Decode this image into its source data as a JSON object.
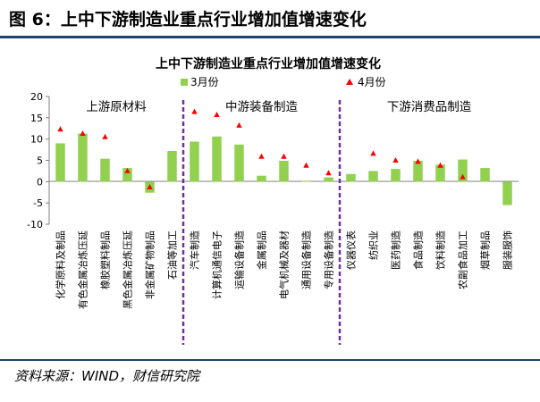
{
  "figure": {
    "title": "图 6：上中下游制造业重点行业增加值增速变化",
    "source": "资料来源：WIND，财信研究院"
  },
  "colors": {
    "bar": "#92d050",
    "marker": "#ff0000",
    "divider": "#7030a0",
    "header_rule": "#1f3f6e"
  },
  "chart_data": {
    "type": "bar",
    "title": "上中下游制造业重点行业增加值增速变化",
    "ylim": [
      -10,
      20
    ],
    "yticks": [
      -10,
      -5,
      0,
      5,
      10,
      15,
      20
    ],
    "grid": false,
    "legend": "top",
    "categories": [
      "化学原料及制品",
      "有色金属冶炼压延",
      "橡胶塑料制品",
      "黑色金属冶炼压延",
      "非金属矿物制品",
      "石油等加工",
      "汽车制造",
      "计算机通信电子",
      "运输设备制造",
      "金属制品",
      "电气机械及器材",
      "通用设备制造",
      "专用设备制造",
      "仪器仪表",
      "纺织业",
      "医药制造",
      "食品制造",
      "饮料制造",
      "农副食品加工",
      "烟草制品",
      "服装服饰"
    ],
    "series": [
      {
        "name": "3月份",
        "kind": "bar",
        "values": [
          9.0,
          11.3,
          5.4,
          3.2,
          -2.6,
          7.2,
          9.4,
          10.6,
          8.7,
          1.4,
          4.9,
          0.2,
          1.0,
          1.8,
          2.5,
          3.0,
          4.9,
          4.0,
          5.2,
          3.2,
          -5.5
        ]
      },
      {
        "name": "4月份",
        "kind": "marker",
        "values": [
          12.3,
          11.3,
          10.5,
          2.5,
          -1.3,
          null,
          16.4,
          15.7,
          13.2,
          5.9,
          5.9,
          3.8,
          2.0,
          null,
          6.6,
          5.0,
          4.7,
          3.8,
          1.1,
          null,
          null
        ]
      }
    ],
    "dividers_after": [
      "石油等加工",
      "专用设备制造"
    ],
    "section_labels": [
      "上游原材料",
      "中游装备制造",
      "下游消费品制造"
    ]
  }
}
